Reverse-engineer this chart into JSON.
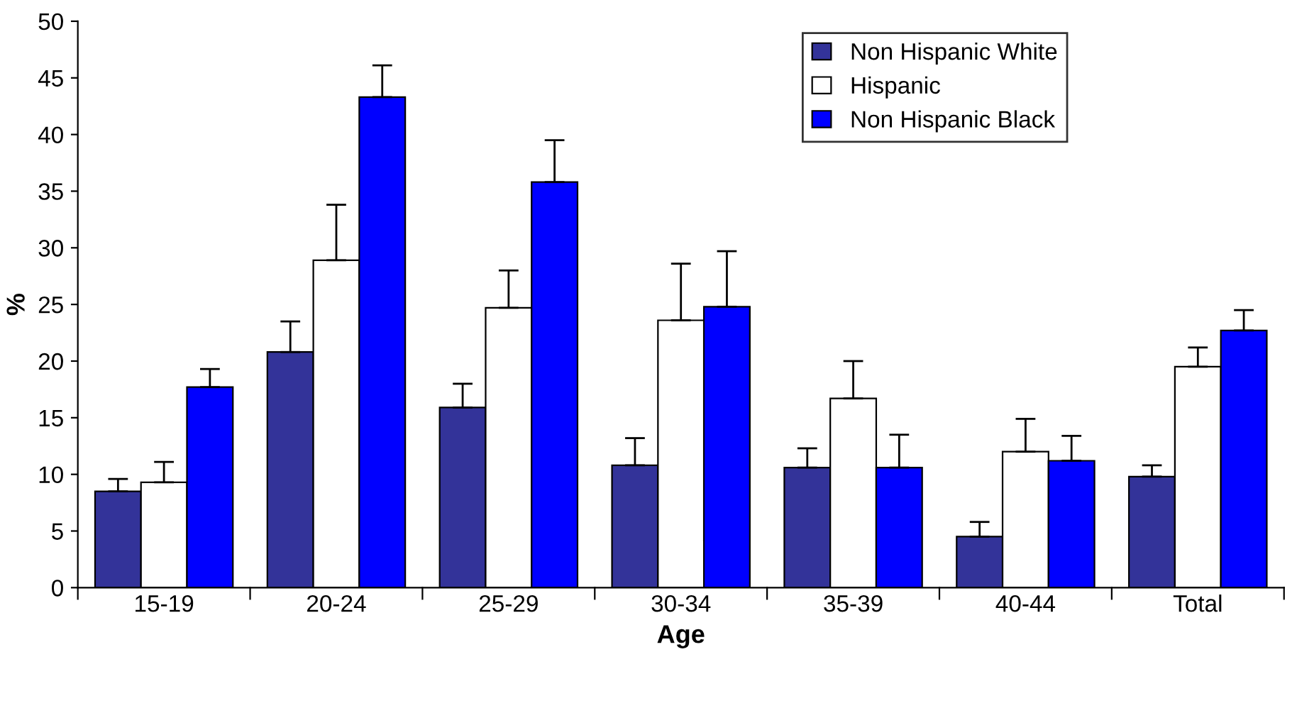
{
  "chart_data": {
    "type": "bar",
    "xlabel": "Age",
    "ylabel": "%",
    "categories": [
      "15-19",
      "20-24",
      "25-29",
      "30-34",
      "35-39",
      "40-44",
      "Total"
    ],
    "series": [
      {
        "name": "Non Hispanic White",
        "color": "#333399",
        "values": [
          8.5,
          20.8,
          15.9,
          10.8,
          10.6,
          4.5,
          9.8
        ],
        "errors": [
          [
            8.5,
            9.6
          ],
          [
            20.8,
            23.5
          ],
          [
            15.9,
            18.0
          ],
          [
            10.8,
            13.2
          ],
          [
            10.6,
            12.3
          ],
          [
            4.5,
            5.8
          ],
          [
            9.8,
            10.8
          ]
        ]
      },
      {
        "name": "Hispanic",
        "color": "#ffffff",
        "values": [
          9.3,
          28.9,
          24.7,
          23.6,
          16.7,
          12.0,
          19.5
        ],
        "errors": [
          [
            9.3,
            11.1
          ],
          [
            28.9,
            33.8
          ],
          [
            24.7,
            28.0
          ],
          [
            23.6,
            28.6
          ],
          [
            16.7,
            20.0
          ],
          [
            12.0,
            14.9
          ],
          [
            19.5,
            21.2
          ]
        ]
      },
      {
        "name": "Non Hispanic Black",
        "color": "#0000ff",
        "values": [
          17.7,
          43.3,
          35.8,
          24.8,
          10.6,
          11.2,
          22.7
        ],
        "errors": [
          [
            17.7,
            19.3
          ],
          [
            43.3,
            46.1
          ],
          [
            35.8,
            39.5
          ],
          [
            24.8,
            29.7
          ],
          [
            10.6,
            13.5
          ],
          [
            11.2,
            13.4
          ],
          [
            22.7,
            24.5
          ]
        ]
      }
    ],
    "ylim": [
      0,
      50
    ],
    "yticks": [
      0,
      5,
      10,
      15,
      20,
      25,
      30,
      35,
      40,
      45,
      50
    ],
    "grid": false,
    "legend": "top right"
  }
}
